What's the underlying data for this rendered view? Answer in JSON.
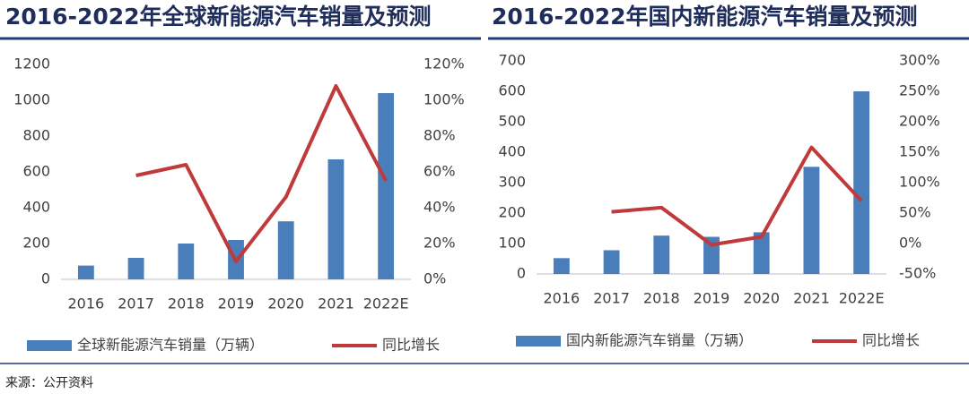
{
  "chart_data": [
    {
      "type": "bar",
      "title": "2016-2022年全球新能源汽车销量及预测",
      "categories": [
        "2016",
        "2017",
        "2018",
        "2019",
        "2020",
        "2021",
        "2022E"
      ],
      "series": [
        {
          "name": "全球新能源汽车销量（万辆）",
          "type": "bar",
          "color": "#4a7ebb",
          "values": [
            77,
            120,
            200,
            220,
            324,
            670,
            1040
          ]
        },
        {
          "name": "同比增长",
          "type": "line",
          "axis": "y2",
          "color": "#c0393b",
          "values": [
            null,
            58,
            64,
            10,
            46,
            108,
            55
          ]
        }
      ],
      "ylim": [
        0,
        1200
      ],
      "yticks": [
        0,
        200,
        400,
        600,
        800,
        1000,
        1200
      ],
      "y2lim": [
        0,
        120
      ],
      "y2ticks": [
        {
          "value": 0,
          "label": "0%"
        },
        {
          "value": 20,
          "label": "20%"
        },
        {
          "value": 40,
          "label": "40%"
        },
        {
          "value": 60,
          "label": "60%"
        },
        {
          "value": 80,
          "label": "80%"
        },
        {
          "value": 100,
          "label": "100%"
        },
        {
          "value": 120,
          "label": "120%"
        }
      ],
      "grid": false
    },
    {
      "type": "bar",
      "title": "2016-2022年国内新能源汽车销量及预测",
      "categories": [
        "2016",
        "2017",
        "2018",
        "2019",
        "2020",
        "2021",
        "2022E"
      ],
      "series": [
        {
          "name": "国内新能源汽车销量（万辆）",
          "type": "bar",
          "color": "#4a7ebb",
          "values": [
            52,
            78,
            126,
            122,
            137,
            352,
            600
          ]
        },
        {
          "name": "同比增长",
          "type": "line",
          "axis": "y2",
          "color": "#c0393b",
          "values": [
            null,
            52,
            59,
            -2,
            11,
            158,
            70
          ]
        }
      ],
      "ylim": [
        0,
        700
      ],
      "yticks": [
        0,
        100,
        200,
        300,
        400,
        500,
        600,
        700
      ],
      "y2lim": [
        -50,
        300
      ],
      "y2ticks": [
        {
          "value": -50,
          "label": "-50%"
        },
        {
          "value": 0,
          "label": "0%"
        },
        {
          "value": 50,
          "label": "50%"
        },
        {
          "value": 100,
          "label": "100%"
        },
        {
          "value": 150,
          "label": "150%"
        },
        {
          "value": 200,
          "label": "200%"
        },
        {
          "value": 250,
          "label": "250%"
        },
        {
          "value": 300,
          "label": "300%"
        }
      ],
      "grid": false
    }
  ],
  "source": "来源：公开资料"
}
